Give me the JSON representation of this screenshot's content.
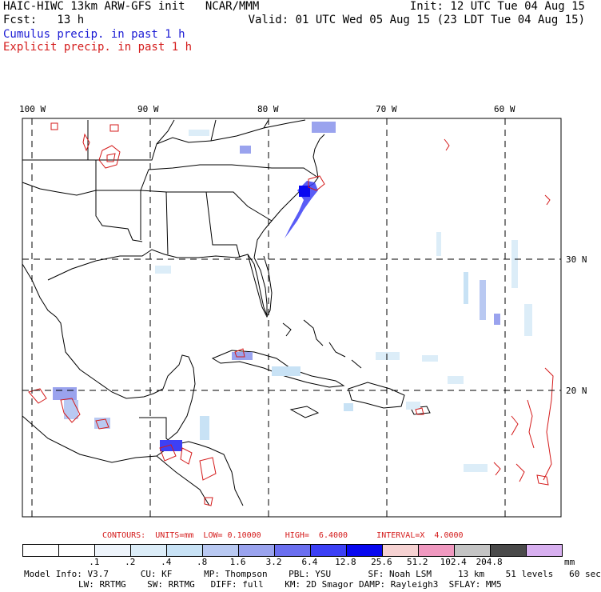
{
  "header": {
    "title_left": "HAIC-HIWC 13km ARW-GFS init   NCAR/MMM",
    "title_right": "Init: 12 UTC Tue 04 Aug 15",
    "fcst": "Fcst:   13 h",
    "valid": "Valid: 01 UTC Wed 05 Aug 15 (23 LDT Tue 04 Aug 15)",
    "legend_cumulus": "Cumulus precip. in past 1 h",
    "legend_explicit": "Explicit precip. in past 1 h",
    "cumulus_color": "#1b1bd4",
    "explicit_color": "#d41b1b"
  },
  "map": {
    "lon_labels": [
      "100 W",
      "90 W",
      "80 W",
      "70 W",
      "60 W"
    ],
    "lat_labels": [
      "30 N",
      "20 N"
    ],
    "frame_color": "#000000",
    "grid_style": "dashed"
  },
  "contours": {
    "text": "CONTOURS:  UNITS=mm  LOW= 0.10000     HIGH=  6.4000      INTERVAL=X  4.0000"
  },
  "colorbar": {
    "colors": [
      "#ffffff",
      "#ffffff",
      "#eef4fb",
      "#dcedf8",
      "#c8e2f5",
      "#b9c9f2",
      "#9aa3ee",
      "#6b6ff0",
      "#3c40f5",
      "#0808f0",
      "#f6d2d2",
      "#f099c0",
      "#c4c4c4",
      "#4a4a4a",
      "#d8b0f0"
    ],
    "labels": [
      ".1",
      ".2",
      ".4",
      ".8",
      "1.6",
      "3.2",
      "6.4",
      "12.8",
      "25.6",
      "51.2",
      "102.4",
      "204.8"
    ],
    "unit": "mm"
  },
  "model_info": {
    "line1": "Model Info: V3.7      CU: KF      MP: Thompson    PBL: YSU       SF: Noah LSM     13 km    51 levels   60 sec",
    "line2": "LW: RRTMG    SW: RRTMG   DIFF: full    KM: 2D Smagor DAMP: Rayleigh3  SFLAY: MM5"
  }
}
